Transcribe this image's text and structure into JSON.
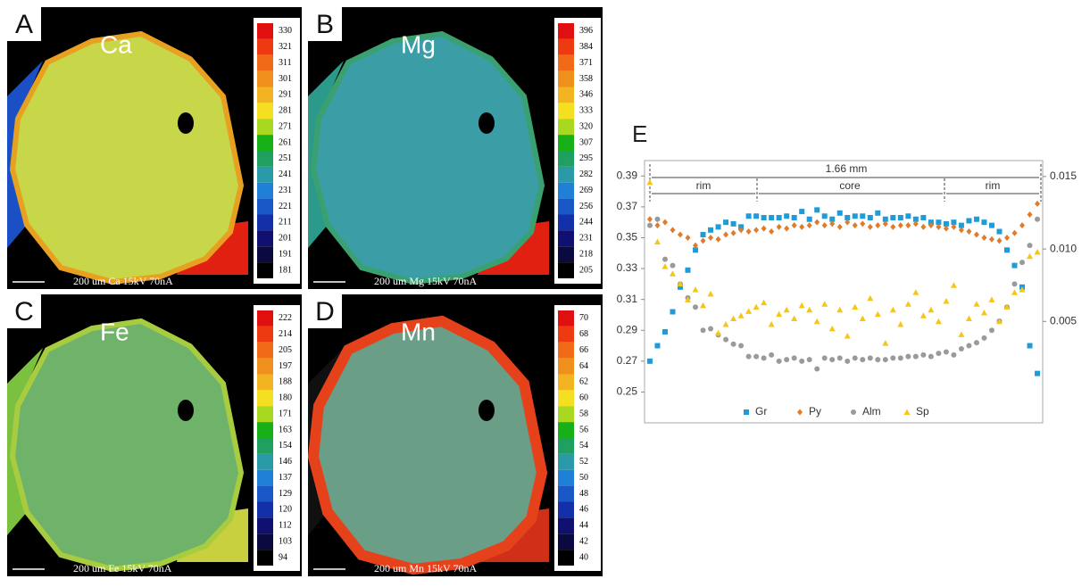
{
  "maps": [
    {
      "label": "A",
      "element": "Ca",
      "caption": "200 um  Ca 15kV 70nA",
      "colorbar": [
        330,
        321,
        311,
        301,
        291,
        281,
        271,
        261,
        251,
        241,
        231,
        221,
        211,
        201,
        191,
        181
      ]
    },
    {
      "label": "B",
      "element": "Mg",
      "caption": "200 um  Mg 15kV 70nA",
      "colorbar": [
        396,
        384,
        371,
        358,
        346,
        333,
        320,
        307,
        295,
        282,
        269,
        256,
        244,
        231,
        218,
        205
      ]
    },
    {
      "label": "C",
      "element": "Fe",
      "caption": "200 um  Fe 15kV 70nA",
      "colorbar": [
        222,
        214,
        205,
        197,
        188,
        180,
        171,
        163,
        154,
        146,
        137,
        129,
        120,
        112,
        103,
        94
      ]
    },
    {
      "label": "D",
      "element": "Mn",
      "caption": "200 um  Mn 15kV 70nA",
      "colorbar": [
        70,
        68,
        66,
        64,
        62,
        60,
        58,
        56,
        54,
        52,
        50,
        48,
        46,
        44,
        42,
        40
      ]
    }
  ],
  "chart_data": {
    "type": "scatter",
    "panel_label": "E",
    "annotations": [
      "1.66 mm",
      "rim",
      "core",
      "rim"
    ],
    "x": [
      0,
      1,
      2,
      3,
      4,
      5,
      6,
      7,
      8,
      9,
      10,
      11,
      12,
      13,
      14,
      15,
      16,
      17,
      18,
      19,
      20,
      21,
      22,
      23,
      24,
      25,
      26,
      27,
      28,
      29,
      30,
      31,
      32,
      33,
      34,
      35,
      36,
      37,
      38,
      39,
      40,
      41,
      42,
      43,
      44,
      45,
      46,
      47,
      48,
      49,
      50,
      51
    ],
    "xlim": [
      -0.7,
      51.7
    ],
    "ylim": [
      0.23,
      0.4
    ],
    "yticks": [
      0.25,
      0.27,
      0.29,
      0.31,
      0.33,
      0.35,
      0.37,
      0.39
    ],
    "y2lim": [
      -0.002,
      0.0161
    ],
    "y2ticks": [
      0.005,
      {
        "value": 0.01,
        "label": "0.010"
      },
      0.015
    ],
    "series": [
      {
        "name": "Gr",
        "color": "#1f9bd7",
        "marker": "square",
        "values": [
          0.27,
          0.28,
          0.289,
          0.302,
          0.318,
          0.329,
          0.342,
          0.352,
          0.355,
          0.357,
          0.36,
          0.359,
          0.357,
          0.364,
          0.364,
          0.363,
          0.363,
          0.363,
          0.364,
          0.363,
          0.367,
          0.362,
          0.368,
          0.364,
          0.362,
          0.366,
          0.363,
          0.364,
          0.364,
          0.363,
          0.366,
          0.362,
          0.363,
          0.363,
          0.364,
          0.362,
          0.363,
          0.36,
          0.36,
          0.359,
          0.36,
          0.358,
          0.361,
          0.362,
          0.36,
          0.358,
          0.354,
          0.342,
          0.332,
          0.318,
          0.28,
          0.262
        ]
      },
      {
        "name": "Py",
        "color": "#e07b2a",
        "marker": "diamond",
        "values": [
          0.362,
          0.358,
          0.36,
          0.355,
          0.352,
          0.35,
          0.345,
          0.348,
          0.35,
          0.349,
          0.352,
          0.353,
          0.355,
          0.354,
          0.355,
          0.356,
          0.354,
          0.357,
          0.356,
          0.358,
          0.357,
          0.358,
          0.36,
          0.358,
          0.359,
          0.357,
          0.36,
          0.358,
          0.359,
          0.357,
          0.358,
          0.359,
          0.357,
          0.358,
          0.358,
          0.359,
          0.357,
          0.358,
          0.357,
          0.356,
          0.357,
          0.355,
          0.354,
          0.352,
          0.35,
          0.349,
          0.348,
          0.35,
          0.353,
          0.358,
          0.365,
          0.372
        ]
      },
      {
        "name": "Alm",
        "color": "#9a9a9a",
        "marker": "circle",
        "values": [
          0.358,
          0.362,
          0.336,
          0.332,
          0.32,
          0.311,
          0.305,
          0.29,
          0.291,
          0.287,
          0.284,
          0.281,
          0.28,
          0.273,
          0.273,
          0.272,
          0.274,
          0.27,
          0.271,
          0.272,
          0.27,
          0.271,
          0.265,
          0.272,
          0.271,
          0.272,
          0.27,
          0.272,
          0.271,
          0.272,
          0.271,
          0.271,
          0.272,
          0.272,
          0.273,
          0.273,
          0.274,
          0.273,
          0.275,
          0.276,
          0.274,
          0.278,
          0.28,
          0.282,
          0.285,
          0.29,
          0.296,
          0.305,
          0.32,
          0.334,
          0.345,
          0.362
        ]
      },
      {
        "name": "Sp",
        "color": "#f5c518",
        "marker": "triangle",
        "axis": "y2",
        "values": [
          0.0146,
          0.0105,
          0.0088,
          0.0083,
          0.0076,
          0.0065,
          0.0072,
          0.0061,
          0.0069,
          0.0042,
          0.0048,
          0.0052,
          0.0054,
          0.0057,
          0.006,
          0.0063,
          0.0048,
          0.0055,
          0.0058,
          0.0052,
          0.0061,
          0.0058,
          0.005,
          0.0062,
          0.0045,
          0.0058,
          0.004,
          0.006,
          0.0052,
          0.0066,
          0.0055,
          0.0035,
          0.0058,
          0.0048,
          0.0062,
          0.007,
          0.0054,
          0.0058,
          0.005,
          0.0064,
          0.0075,
          0.0041,
          0.0052,
          0.0062,
          0.0056,
          0.0065,
          0.005,
          0.006,
          0.007,
          0.0072,
          0.0095,
          0.0098
        ]
      }
    ],
    "legend": "bottom"
  }
}
